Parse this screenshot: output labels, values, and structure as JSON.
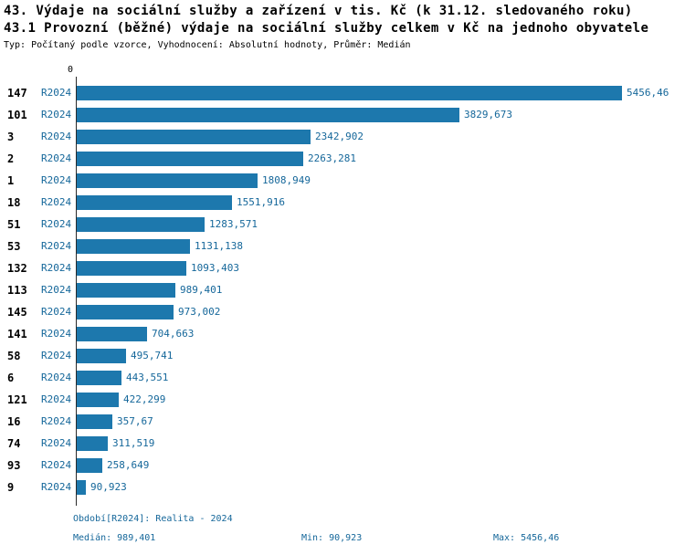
{
  "header": {
    "title_line1": "43. Výdaje na sociální služby a zařízení v tis. Kč (k 31.12. sledovaného roku)",
    "title_line2": "43.1 Provozní (běžné) výdaje na sociální služby celkem v Kč na jednoho obyvatele",
    "subtitle": "Typ: Počítaný podle vzorce, Vyhodnocení: Absolutní hodnoty, Průměr: Medián"
  },
  "axis": {
    "zero_label": "0"
  },
  "chart_data": {
    "type": "bar",
    "orientation": "horizontal",
    "series_label": "R2024",
    "categories": [
      "147",
      "101",
      "3",
      "2",
      "1",
      "18",
      "51",
      "53",
      "132",
      "113",
      "145",
      "141",
      "58",
      "6",
      "121",
      "16",
      "74",
      "93",
      "9"
    ],
    "values": [
      5456.46,
      3829.673,
      2342.902,
      2263.281,
      1808.949,
      1551.916,
      1283.571,
      1131.138,
      1093.403,
      989.401,
      973.002,
      704.663,
      495.741,
      443.551,
      422.299,
      357.67,
      311.519,
      258.649,
      90.923
    ],
    "value_labels": [
      "5456,46",
      "3829,673",
      "2342,902",
      "2263,281",
      "1808,949",
      "1551,916",
      "1283,571",
      "1131,138",
      "1093,403",
      "989,401",
      "973,002",
      "704,663",
      "495,741",
      "443,551",
      "422,299",
      "357,67",
      "311,519",
      "258,649",
      "90,923"
    ],
    "title": "43.1 Provozní (běžné) výdaje na sociální služby celkem v Kč na jednoho obyvatele",
    "xlabel": "",
    "ylabel": "",
    "xlim": [
      0,
      5950
    ],
    "grid": false,
    "legend_position": "none",
    "bar_color": "#1d78ad"
  },
  "footer": {
    "period": "Období[R2024]: Realita - 2024",
    "median": "Medián: 989,401",
    "min": "Min: 90,923",
    "max": "Max: 5456,46"
  },
  "colors": {
    "accent_text": "#15679a",
    "bar": "#1d78ad",
    "title_text": "#000000"
  }
}
